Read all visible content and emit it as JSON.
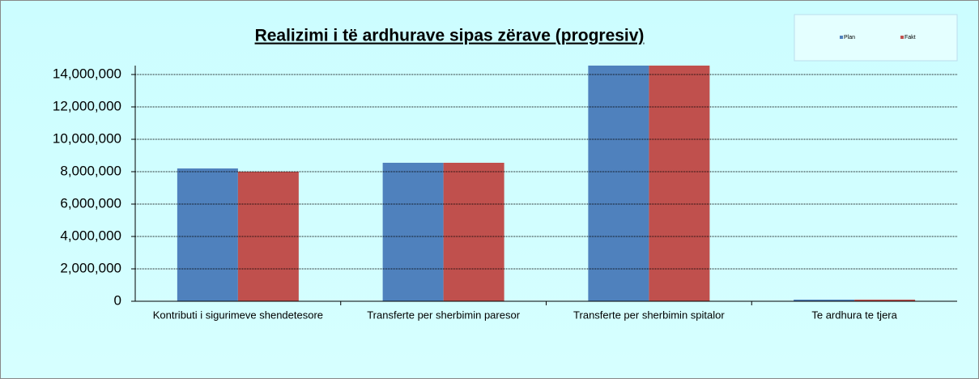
{
  "chart_data": {
    "type": "bar",
    "title": "Realizimi i të ardhurave sipas zërave (progresiv)",
    "categories": [
      "Kontributi i sigurimeve shendetesore",
      "Transferte per sherbimin paresor",
      "Transferte per sherbimin spitalor",
      "Te ardhura te tjera"
    ],
    "series": [
      {
        "name": "Plan",
        "color": "#4f81bd",
        "values": [
          8200000,
          8550000,
          14550000,
          100000
        ]
      },
      {
        "name": "Fakt",
        "color": "#c0504d",
        "values": [
          8000000,
          8550000,
          14550000,
          100000
        ]
      }
    ],
    "ylim": [
      0,
      14550000
    ],
    "yticks": [
      {
        "value": 0,
        "label": "0"
      },
      {
        "value": 2000000,
        "label": "2,000,000"
      },
      {
        "value": 4000000,
        "label": "4,000,000"
      },
      {
        "value": 6000000,
        "label": "6,000,000"
      },
      {
        "value": 8000000,
        "label": "8,000,000"
      },
      {
        "value": 10000000,
        "label": "10,000,000"
      },
      {
        "value": 12000000,
        "label": "12,000,000"
      },
      {
        "value": 14000000,
        "label": "14,000,000"
      }
    ],
    "grid": true,
    "legend": "top-right"
  }
}
